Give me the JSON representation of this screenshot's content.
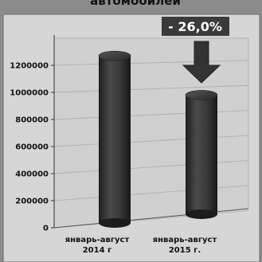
{
  "chart_data": {
    "type": "bar",
    "title": "автомобилей",
    "categories": [
      "январь-август 2014 г",
      "январь-август 2015 г."
    ],
    "category_lines": [
      [
        "январь-август",
        "2014 г"
      ],
      [
        "январь-август",
        "2015 г."
      ]
    ],
    "values": [
      1250000,
      925000
    ],
    "ylim": [
      0,
      1400000
    ],
    "yticks": [
      0,
      200000,
      400000,
      600000,
      800000,
      1000000,
      1200000
    ],
    "grid": true,
    "legend": "none",
    "annotation": {
      "text": "- 26,0%",
      "target_category": "январь-август 2015 г.",
      "arrow": "down"
    },
    "colors": {
      "background": "#8c8c8c",
      "plot_area": "#d4d4d4",
      "bar": "#2b2b2b",
      "bar_highlight": "#4a4a4a",
      "grid": "#b5b5b5",
      "annotation_box": "#3a3a3a",
      "arrow": "#333333"
    }
  }
}
